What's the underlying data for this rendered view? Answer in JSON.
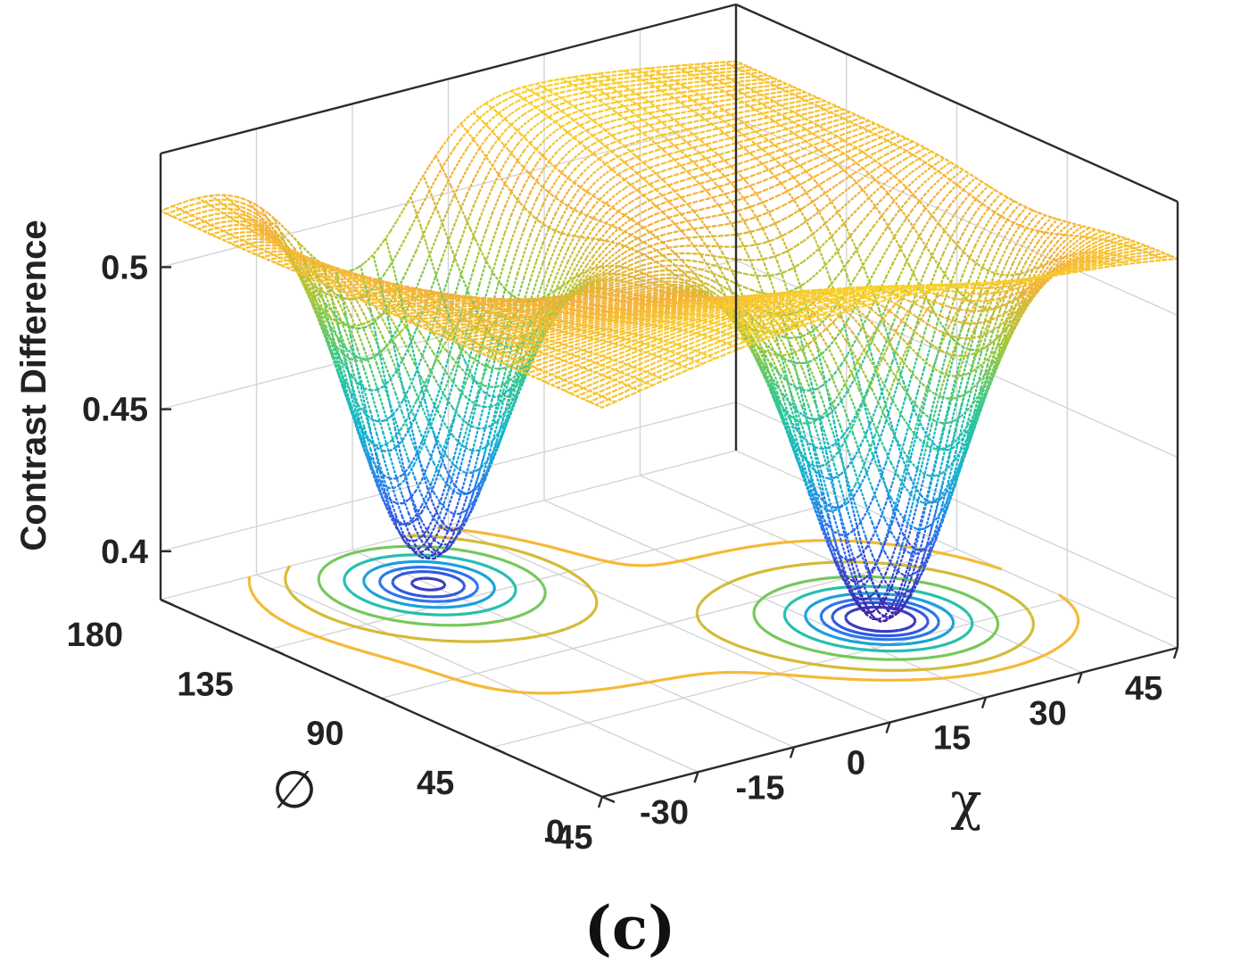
{
  "figure": {
    "panel_label": "(c)"
  },
  "chart_data": {
    "type": "surface",
    "subtype": "3d-surface-with-floor-contours",
    "xlabel": "χ",
    "ylabel": "∅",
    "zlabel": "Contrast Difference",
    "x_ticks": [
      "-45",
      "-30",
      "-15",
      "0",
      "15",
      "30",
      "45"
    ],
    "y_ticks": [
      "0",
      "45",
      "90",
      "135",
      "180"
    ],
    "z_ticks": [
      "0.4",
      "0.45",
      "0.5"
    ],
    "xlim": [
      -45,
      45
    ],
    "ylim": [
      0,
      180
    ],
    "zlim": [
      0.383,
      0.54
    ],
    "grid": true,
    "colormap": [
      "#3e26a8",
      "#2f6bf0",
      "#13b3d4",
      "#34c88f",
      "#a7c834",
      "#f4b13a",
      "#f9d92a"
    ],
    "surface": {
      "baseline": 0.52,
      "ridge_amplitude": 0.012,
      "wells": [
        {
          "chi": -15,
          "phi": 150,
          "min": 0.387
        },
        {
          "chi": 22,
          "phi": 60,
          "min": 0.387
        }
      ],
      "well_width_chi": 13,
      "well_width_phi": 30
    },
    "contour_levels": [
      0.395,
      0.405,
      0.415,
      0.43,
      0.45,
      0.475,
      0.5,
      0.515
    ]
  }
}
